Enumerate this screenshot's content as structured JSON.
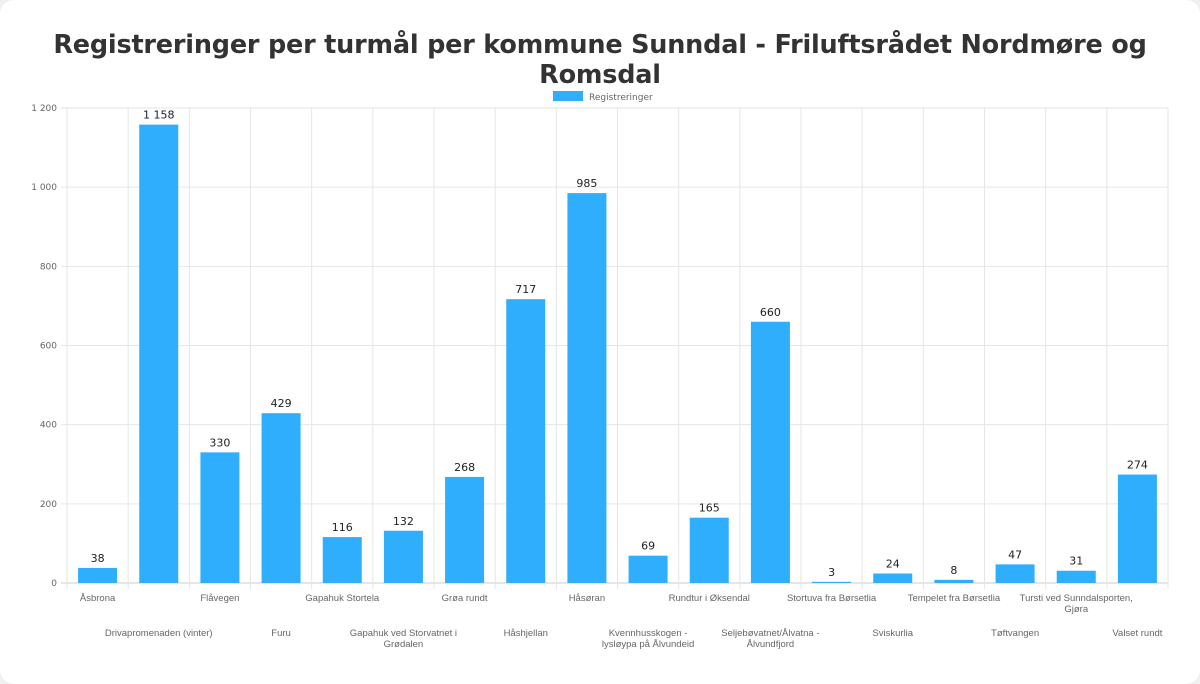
{
  "chart_data": {
    "type": "bar",
    "title": "Registreringer per turmål per kommune Sunndal - Friluftsrådet Nordmøre og Romsdal",
    "legend": {
      "label": "Registreringer",
      "placement": "top-center"
    },
    "color": "#2eaefc",
    "xlabel": "",
    "ylabel": "",
    "ylim": [
      0,
      1200
    ],
    "yticks": [
      0,
      200,
      400,
      600,
      800,
      1000,
      1200
    ],
    "ytick_labels": [
      "0",
      "200",
      "400",
      "600",
      "800",
      "1 000",
      "1 200"
    ],
    "grid": true,
    "categories": [
      "Åsbrona",
      "Drivapromenaden (vinter)",
      "Flåvegen",
      "Furu",
      "Gapahuk Stortela",
      "Gapahuk ved Storvatnet i Grødalen",
      "Grøa rundt",
      "Håshjellan",
      "Håsøran",
      "Kvennhusskogen - lysløypa på Ålvundeid",
      "Rundtur i Øksendal",
      "Seljebøvatnet/Ålvatna - Ålvundfjord",
      "Stortuva fra Børsetlia",
      "Sviskurlia",
      "Tempelet fra Børsetlia",
      "Tøftvangen",
      "Tursti ved Sunndalsporten, Gjøra",
      "Valset rundt"
    ],
    "values": [
      38,
      1158,
      330,
      429,
      116,
      132,
      268,
      717,
      985,
      69,
      165,
      660,
      3,
      24,
      8,
      47,
      31,
      274
    ],
    "value_labels": [
      "38",
      "1 158",
      "330",
      "429",
      "116",
      "132",
      "268",
      "717",
      "985",
      "69",
      "165",
      "660",
      "3",
      "24",
      "8",
      "47",
      "31",
      "274"
    ]
  }
}
